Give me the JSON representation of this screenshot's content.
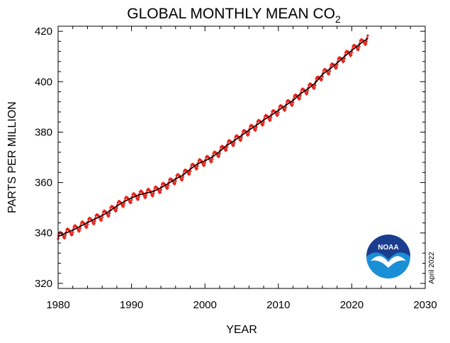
{
  "chart_data": {
    "type": "line",
    "title": "GLOBAL MONTHLY MEAN CO",
    "title_subscript": "2",
    "xlabel": "YEAR",
    "ylabel": "PARTS PER MILLION",
    "xlim": [
      1980,
      2030
    ],
    "ylim": [
      318,
      422
    ],
    "x_ticks": [
      1980,
      1990,
      2000,
      2010,
      2020,
      2030
    ],
    "y_ticks": [
      320,
      340,
      360,
      380,
      400,
      420
    ],
    "grid": false,
    "legend": "none",
    "annotation": "April 2022",
    "logo": "NOAA",
    "series": [
      {
        "style": "red-dots-monthly",
        "color": "#e8221b",
        "x": [
          1980,
          1981,
          1982,
          1983,
          1984,
          1985,
          1986,
          1987,
          1988,
          1989,
          1990,
          1991,
          1992,
          1993,
          1994,
          1995,
          1996,
          1997,
          1998,
          1999,
          2000,
          2001,
          2002,
          2003,
          2004,
          2005,
          2006,
          2007,
          2008,
          2009,
          2010,
          2011,
          2012,
          2013,
          2014,
          2015,
          2016,
          2017,
          2018,
          2019,
          2020,
          2021,
          2022.2
        ],
        "values": [
          338.5,
          339.9,
          341.1,
          342.6,
          344.1,
          345.5,
          346.9,
          348.6,
          350.7,
          352.4,
          353.9,
          355.1,
          355.8,
          356.5,
          357.9,
          359.6,
          361.4,
          362.9,
          365.3,
          367.4,
          368.6,
          370.1,
          372.3,
          374.8,
          376.6,
          378.7,
          380.8,
          382.7,
          384.8,
          386.6,
          388.6,
          390.6,
          392.6,
          395.2,
          397.1,
          399.4,
          402.9,
          405.0,
          407.4,
          410.0,
          412.4,
          414.7,
          417.2
        ],
        "seasonal_amplitude": 3.0
      },
      {
        "style": "black-trend",
        "color": "#000000",
        "x": [
          1980,
          1981,
          1982,
          1983,
          1984,
          1985,
          1986,
          1987,
          1988,
          1989,
          1990,
          1991,
          1992,
          1993,
          1994,
          1995,
          1996,
          1997,
          1998,
          1999,
          2000,
          2001,
          2002,
          2003,
          2004,
          2005,
          2006,
          2007,
          2008,
          2009,
          2010,
          2011,
          2012,
          2013,
          2014,
          2015,
          2016,
          2017,
          2018,
          2019,
          2020,
          2021,
          2022.2
        ],
        "values": [
          338.5,
          339.9,
          341.1,
          342.6,
          344.1,
          345.5,
          346.9,
          348.6,
          350.7,
          352.4,
          353.9,
          355.1,
          355.8,
          356.5,
          357.9,
          359.6,
          361.4,
          362.9,
          365.3,
          367.4,
          368.6,
          370.1,
          372.3,
          374.8,
          376.6,
          378.7,
          380.8,
          382.7,
          384.8,
          386.6,
          388.6,
          390.6,
          392.6,
          395.2,
          397.1,
          399.4,
          402.9,
          405.0,
          407.4,
          410.0,
          412.4,
          414.7,
          417.2
        ]
      }
    ]
  },
  "colors": {
    "noaa_dark_blue": "#1b3d8f",
    "noaa_light_blue": "#1a8fd6"
  }
}
